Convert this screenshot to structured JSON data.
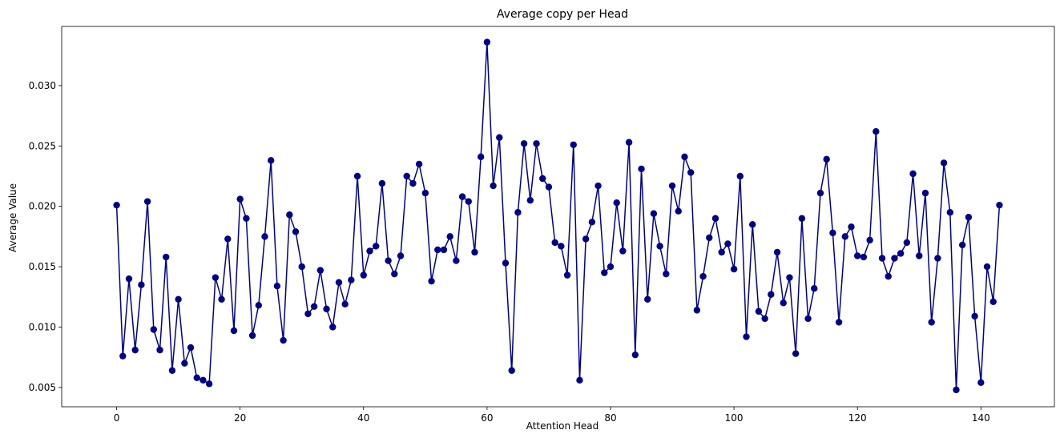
{
  "chart_data": {
    "type": "line",
    "title": "Average copy per Head",
    "xlabel": "Attention Head",
    "ylabel": "Average Value",
    "xlim": [
      -8.9,
      151.9
    ],
    "ylim": [
      0.0034,
      0.0349
    ],
    "xticks": [
      0,
      20,
      40,
      60,
      80,
      100,
      120,
      140
    ],
    "xtick_labels": [
      "0",
      "20",
      "40",
      "60",
      "80",
      "100",
      "120",
      "140"
    ],
    "yticks": [
      0.005,
      0.01,
      0.015,
      0.02,
      0.025,
      0.03
    ],
    "ytick_labels": [
      "0.005",
      "0.010",
      "0.015",
      "0.020",
      "0.025",
      "0.030"
    ],
    "grid": false,
    "color": "#00008b",
    "marker": "circle",
    "x": [
      0,
      1,
      2,
      3,
      4,
      5,
      6,
      7,
      8,
      9,
      10,
      11,
      12,
      13,
      14,
      15,
      16,
      17,
      18,
      19,
      20,
      21,
      22,
      23,
      24,
      25,
      26,
      27,
      28,
      29,
      30,
      31,
      32,
      33,
      34,
      35,
      36,
      37,
      38,
      39,
      40,
      41,
      42,
      43,
      44,
      45,
      46,
      47,
      48,
      49,
      50,
      51,
      52,
      53,
      54,
      55,
      56,
      57,
      58,
      59,
      60,
      61,
      62,
      63,
      64,
      65,
      66,
      67,
      68,
      69,
      70,
      71,
      72,
      73,
      74,
      75,
      76,
      77,
      78,
      79,
      80,
      81,
      82,
      83,
      84,
      85,
      86,
      87,
      88,
      89,
      90,
      91,
      92,
      93,
      94,
      95,
      96,
      97,
      98,
      99,
      100,
      101,
      102,
      103,
      104,
      105,
      106,
      107,
      108,
      109,
      110,
      111,
      112,
      113,
      114,
      115,
      116,
      117,
      118,
      119,
      120,
      121,
      122,
      123,
      124,
      125,
      126,
      127,
      128,
      129,
      130,
      131,
      132,
      133,
      134,
      135,
      136,
      137,
      138,
      139,
      140,
      141,
      142,
      143
    ],
    "values": [
      0.0201,
      0.0076,
      0.014,
      0.0081,
      0.0135,
      0.0204,
      0.0098,
      0.0081,
      0.0158,
      0.0064,
      0.0123,
      0.007,
      0.0083,
      0.0058,
      0.0056,
      0.0053,
      0.0141,
      0.0123,
      0.0173,
      0.0097,
      0.0206,
      0.019,
      0.0093,
      0.0118,
      0.0175,
      0.0238,
      0.0134,
      0.0089,
      0.0193,
      0.0179,
      0.015,
      0.0111,
      0.0117,
      0.0147,
      0.0115,
      0.01,
      0.0137,
      0.0119,
      0.0139,
      0.0225,
      0.0143,
      0.0163,
      0.0167,
      0.0219,
      0.0155,
      0.0144,
      0.0159,
      0.0225,
      0.0219,
      0.0235,
      0.0211,
      0.0138,
      0.0164,
      0.0164,
      0.0175,
      0.0155,
      0.0208,
      0.0204,
      0.0162,
      0.0241,
      0.0336,
      0.0217,
      0.0257,
      0.0153,
      0.0064,
      0.0195,
      0.0252,
      0.0205,
      0.0252,
      0.0223,
      0.0216,
      0.017,
      0.0167,
      0.0143,
      0.0251,
      0.0056,
      0.0173,
      0.0187,
      0.0217,
      0.0145,
      0.015,
      0.0203,
      0.0163,
      0.0253,
      0.0077,
      0.0231,
      0.0123,
      0.0194,
      0.0167,
      0.0144,
      0.0217,
      0.0196,
      0.0241,
      0.0228,
      0.0114,
      0.0142,
      0.0174,
      0.019,
      0.0162,
      0.0169,
      0.0148,
      0.0225,
      0.0092,
      0.0185,
      0.0113,
      0.0107,
      0.0127,
      0.0162,
      0.012,
      0.0141,
      0.0078,
      0.019,
      0.0107,
      0.0132,
      0.0211,
      0.0239,
      0.0178,
      0.0104,
      0.0175,
      0.0183,
      0.0159,
      0.0158,
      0.0172,
      0.0262,
      0.0157,
      0.0142,
      0.0157,
      0.0161,
      0.017,
      0.0227,
      0.0159,
      0.0211,
      0.0104,
      0.0157,
      0.0236,
      0.0195,
      0.0048,
      0.0168,
      0.0191,
      0.0109,
      0.0054,
      0.015,
      0.0121,
      0.0201
    ]
  }
}
